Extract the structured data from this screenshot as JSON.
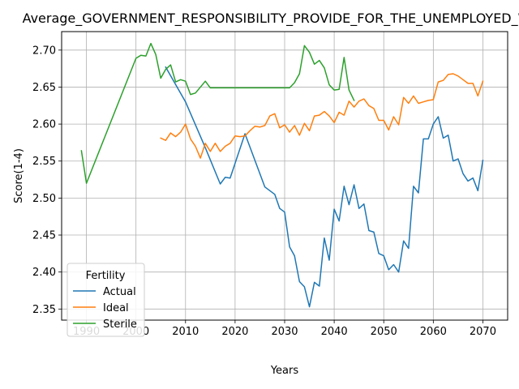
{
  "chart_data": {
    "type": "line",
    "title": "Average_GOVERNMENT_RESPONSIBILITY_PROVIDE_FOR_THE_UNEMPLOYED_Whe",
    "xlabel": "Years",
    "ylabel": "Score(1-4)",
    "xlim": [
      1985,
      2075
    ],
    "ylim": [
      2.335,
      2.725
    ],
    "xticks": [
      1990,
      2000,
      2010,
      2020,
      2030,
      2040,
      2050,
      2060,
      2070
    ],
    "yticks": [
      2.35,
      2.4,
      2.45,
      2.5,
      2.55,
      2.6,
      2.65,
      2.7
    ],
    "grid": true,
    "legend": {
      "title": "Fertility",
      "position": "lower-left"
    },
    "series": [
      {
        "name": "Actual",
        "color": "#1f77b4",
        "points": [
          [
            2006,
            2.677
          ],
          [
            2010,
            2.63
          ],
          [
            2014,
            2.568
          ],
          [
            2017,
            2.519
          ],
          [
            2018,
            2.528
          ],
          [
            2019,
            2.527
          ],
          [
            2022,
            2.587
          ],
          [
            2026,
            2.515
          ],
          [
            2028,
            2.505
          ],
          [
            2029,
            2.486
          ],
          [
            2030,
            2.481
          ],
          [
            2031,
            2.434
          ],
          [
            2032,
            2.422
          ],
          [
            2033,
            2.387
          ],
          [
            2034,
            2.38
          ],
          [
            2035,
            2.353
          ],
          [
            2036,
            2.386
          ],
          [
            2037,
            2.381
          ],
          [
            2038,
            2.446
          ],
          [
            2039,
            2.416
          ],
          [
            2040,
            2.485
          ],
          [
            2041,
            2.469
          ],
          [
            2042,
            2.516
          ],
          [
            2043,
            2.491
          ],
          [
            2044,
            2.518
          ],
          [
            2045,
            2.486
          ],
          [
            2046,
            2.492
          ],
          [
            2047,
            2.456
          ],
          [
            2048,
            2.454
          ],
          [
            2049,
            2.425
          ],
          [
            2050,
            2.422
          ],
          [
            2051,
            2.403
          ],
          [
            2052,
            2.41
          ],
          [
            2053,
            2.4
          ],
          [
            2054,
            2.442
          ],
          [
            2055,
            2.432
          ],
          [
            2056,
            2.516
          ],
          [
            2057,
            2.507
          ],
          [
            2058,
            2.58
          ],
          [
            2059,
            2.58
          ],
          [
            2060,
            2.6
          ],
          [
            2061,
            2.61
          ],
          [
            2062,
            2.581
          ],
          [
            2063,
            2.585
          ],
          [
            2064,
            2.55
          ],
          [
            2065,
            2.553
          ],
          [
            2066,
            2.533
          ],
          [
            2067,
            2.523
          ],
          [
            2068,
            2.527
          ],
          [
            2069,
            2.51
          ],
          [
            2070,
            2.551
          ]
        ]
      },
      {
        "name": "Ideal",
        "color": "#ff7f0e",
        "points": [
          [
            2005,
            2.581
          ],
          [
            2006,
            2.578
          ],
          [
            2007,
            2.588
          ],
          [
            2008,
            2.583
          ],
          [
            2009,
            2.589
          ],
          [
            2010,
            2.6
          ],
          [
            2011,
            2.58
          ],
          [
            2012,
            2.57
          ],
          [
            2013,
            2.554
          ],
          [
            2014,
            2.574
          ],
          [
            2015,
            2.563
          ],
          [
            2016,
            2.574
          ],
          [
            2017,
            2.563
          ],
          [
            2018,
            2.57
          ],
          [
            2019,
            2.574
          ],
          [
            2020,
            2.584
          ],
          [
            2021,
            2.583
          ],
          [
            2022,
            2.584
          ],
          [
            2023,
            2.591
          ],
          [
            2024,
            2.597
          ],
          [
            2025,
            2.596
          ],
          [
            2026,
            2.598
          ],
          [
            2027,
            2.611
          ],
          [
            2028,
            2.614
          ],
          [
            2029,
            2.595
          ],
          [
            2030,
            2.599
          ],
          [
            2031,
            2.589
          ],
          [
            2032,
            2.598
          ],
          [
            2033,
            2.585
          ],
          [
            2034,
            2.601
          ],
          [
            2035,
            2.591
          ],
          [
            2036,
            2.611
          ],
          [
            2037,
            2.612
          ],
          [
            2038,
            2.617
          ],
          [
            2039,
            2.611
          ],
          [
            2040,
            2.602
          ],
          [
            2041,
            2.616
          ],
          [
            2042,
            2.612
          ],
          [
            2043,
            2.631
          ],
          [
            2044,
            2.623
          ],
          [
            2045,
            2.631
          ],
          [
            2046,
            2.634
          ],
          [
            2047,
            2.625
          ],
          [
            2048,
            2.621
          ],
          [
            2049,
            2.605
          ],
          [
            2050,
            2.605
          ],
          [
            2051,
            2.592
          ],
          [
            2052,
            2.61
          ],
          [
            2053,
            2.599
          ],
          [
            2054,
            2.636
          ],
          [
            2055,
            2.628
          ],
          [
            2056,
            2.638
          ],
          [
            2057,
            2.628
          ],
          [
            2058,
            2.63
          ],
          [
            2059,
            2.632
          ],
          [
            2060,
            2.633
          ],
          [
            2061,
            2.657
          ],
          [
            2062,
            2.659
          ],
          [
            2063,
            2.667
          ],
          [
            2064,
            2.668
          ],
          [
            2065,
            2.665
          ],
          [
            2066,
            2.66
          ],
          [
            2067,
            2.655
          ],
          [
            2068,
            2.655
          ],
          [
            2069,
            2.638
          ],
          [
            2070,
            2.658
          ]
        ]
      },
      {
        "name": "Sterile",
        "color": "#2ca02c",
        "points": [
          [
            1989,
            2.564
          ],
          [
            1990,
            2.52
          ],
          [
            2000,
            2.689
          ],
          [
            2001,
            2.693
          ],
          [
            2002,
            2.692
          ],
          [
            2003,
            2.709
          ],
          [
            2004,
            2.694
          ],
          [
            2005,
            2.662
          ],
          [
            2006,
            2.674
          ],
          [
            2007,
            2.68
          ],
          [
            2008,
            2.657
          ],
          [
            2009,
            2.66
          ],
          [
            2010,
            2.658
          ],
          [
            2011,
            2.64
          ],
          [
            2012,
            2.642
          ],
          [
            2014,
            2.658
          ],
          [
            2015,
            2.649
          ],
          [
            2030,
            2.649
          ],
          [
            2031,
            2.649
          ],
          [
            2032,
            2.656
          ],
          [
            2033,
            2.668
          ],
          [
            2034,
            2.706
          ],
          [
            2035,
            2.697
          ],
          [
            2036,
            2.681
          ],
          [
            2037,
            2.686
          ],
          [
            2038,
            2.676
          ],
          [
            2039,
            2.653
          ],
          [
            2040,
            2.646
          ],
          [
            2041,
            2.647
          ],
          [
            2042,
            2.69
          ],
          [
            2043,
            2.646
          ],
          [
            2044,
            2.632
          ]
        ]
      }
    ]
  }
}
